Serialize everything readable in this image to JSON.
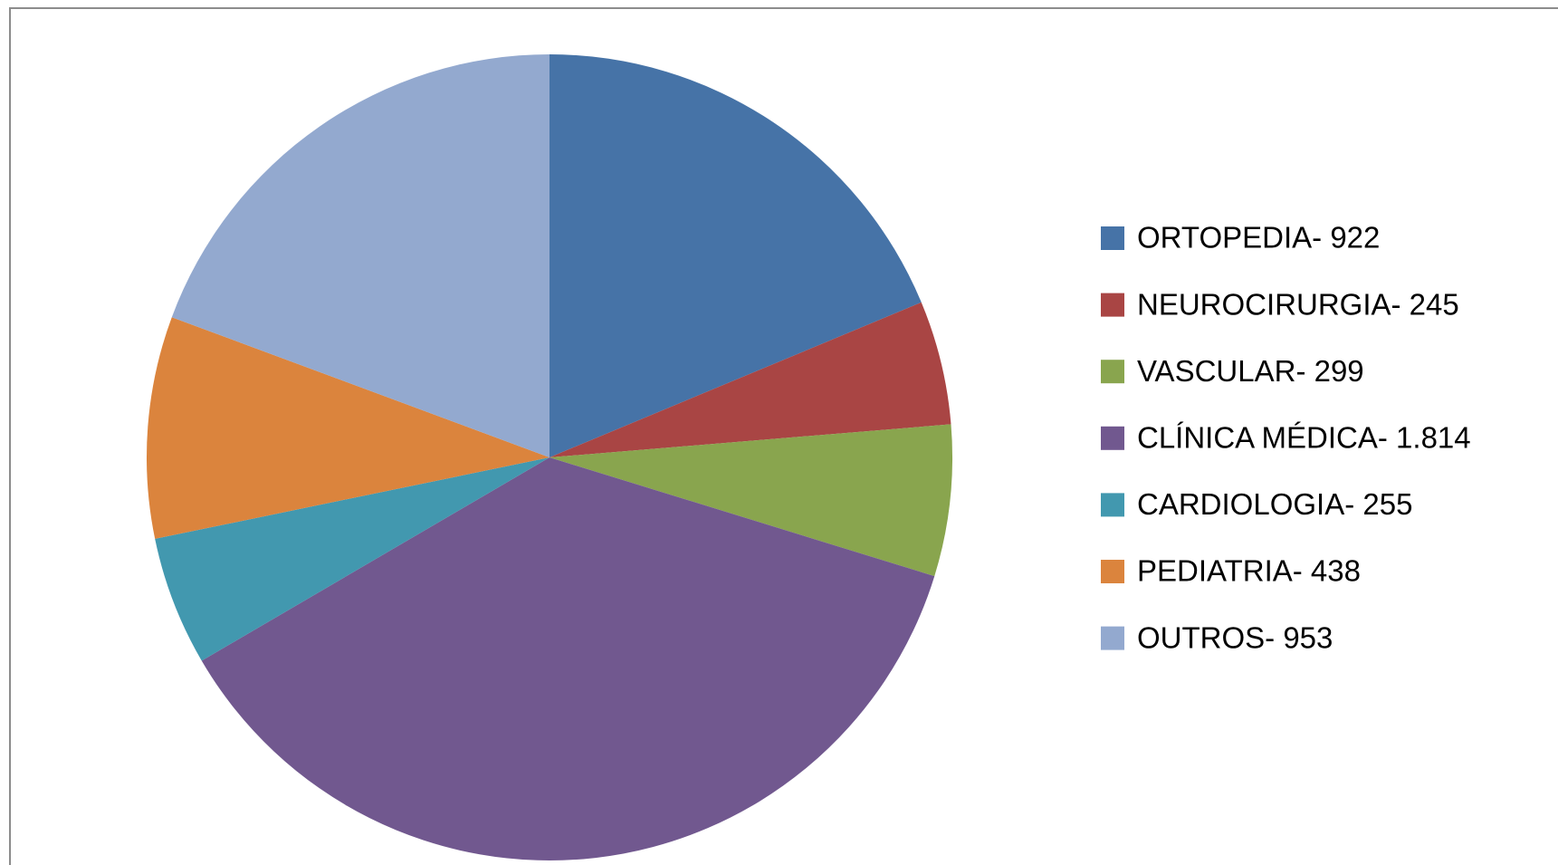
{
  "chart_data": {
    "type": "pie",
    "categories": [
      "ORTOPEDIA- 922",
      "NEUROCIRURGIA- 245",
      "VASCULAR- 299",
      "CLÍNICA MÉDICA- 1.814",
      "CARDIOLOGIA- 255",
      "PEDIATRIA- 438",
      "OUTROS- 953"
    ],
    "values": [
      922,
      245,
      299,
      1814,
      255,
      438,
      953
    ],
    "colors": [
      "#4673a7",
      "#a94544",
      "#89a54e",
      "#71588f",
      "#4298af",
      "#db843d",
      "#93a9cf"
    ],
    "legend": "right"
  }
}
